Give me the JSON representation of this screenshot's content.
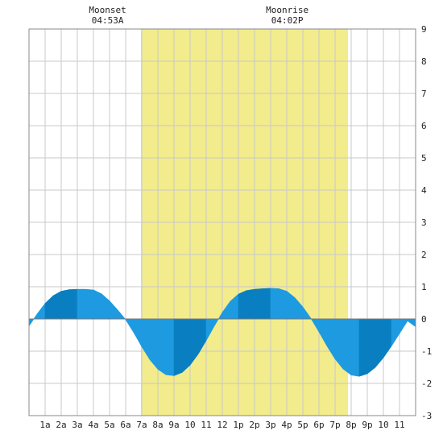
{
  "chart_data": {
    "type": "area",
    "title": "",
    "xlabel": "",
    "ylabel": "",
    "xlim": [
      0,
      24
    ],
    "ylim": [
      -3,
      9
    ],
    "grid": true,
    "x_tick_labels": [
      "1a",
      "2a",
      "3a",
      "4a",
      "5a",
      "6a",
      "7a",
      "8a",
      "9a",
      "10",
      "11",
      "12",
      "1p",
      "2p",
      "3p",
      "4p",
      "5p",
      "6p",
      "7p",
      "8p",
      "9p",
      "10",
      "11"
    ],
    "y_ticks": [
      -3,
      -2,
      -1,
      0,
      1,
      2,
      3,
      4,
      5,
      6,
      7,
      8,
      9
    ],
    "daylight": {
      "start": 6.95,
      "end": 19.8
    },
    "moon_events": [
      {
        "name": "Moonset",
        "time": "04:53A",
        "hour": 4.88
      },
      {
        "name": "Moonrise",
        "time": "04:02P",
        "hour": 16.03
      }
    ],
    "tide": {
      "x": [
        0,
        0.5,
        1,
        1.5,
        2,
        2.5,
        3,
        3.5,
        4,
        4.5,
        5,
        5.5,
        6,
        6.5,
        7,
        7.5,
        8,
        8.5,
        9,
        9.5,
        10,
        10.5,
        11,
        11.5,
        12,
        12.5,
        13,
        13.5,
        14,
        14.5,
        15,
        15.5,
        16,
        16.5,
        17,
        17.5,
        18,
        18.5,
        19,
        19.5,
        20,
        20.5,
        21,
        21.5,
        22,
        22.5,
        23,
        23.5,
        24
      ],
      "y": [
        -0.22,
        0.15,
        0.48,
        0.72,
        0.86,
        0.91,
        0.92,
        0.92,
        0.9,
        0.78,
        0.56,
        0.28,
        -0.02,
        -0.42,
        -0.86,
        -1.26,
        -1.56,
        -1.73,
        -1.76,
        -1.66,
        -1.43,
        -1.09,
        -0.67,
        -0.22,
        0.2,
        0.55,
        0.77,
        0.88,
        0.92,
        0.94,
        0.95,
        0.94,
        0.86,
        0.66,
        0.37,
        0.02,
        -0.4,
        -0.84,
        -1.24,
        -1.55,
        -1.74,
        -1.78,
        -1.7,
        -1.5,
        -1.2,
        -0.84,
        -0.45,
        -0.06,
        -0.24
      ]
    },
    "colors": {
      "daylight": "#f2ec8c",
      "tide_light": "#1e9be0",
      "tide_dark": "#0a7fc0",
      "grid": "#c8c8c8",
      "frame": "#888888"
    }
  }
}
